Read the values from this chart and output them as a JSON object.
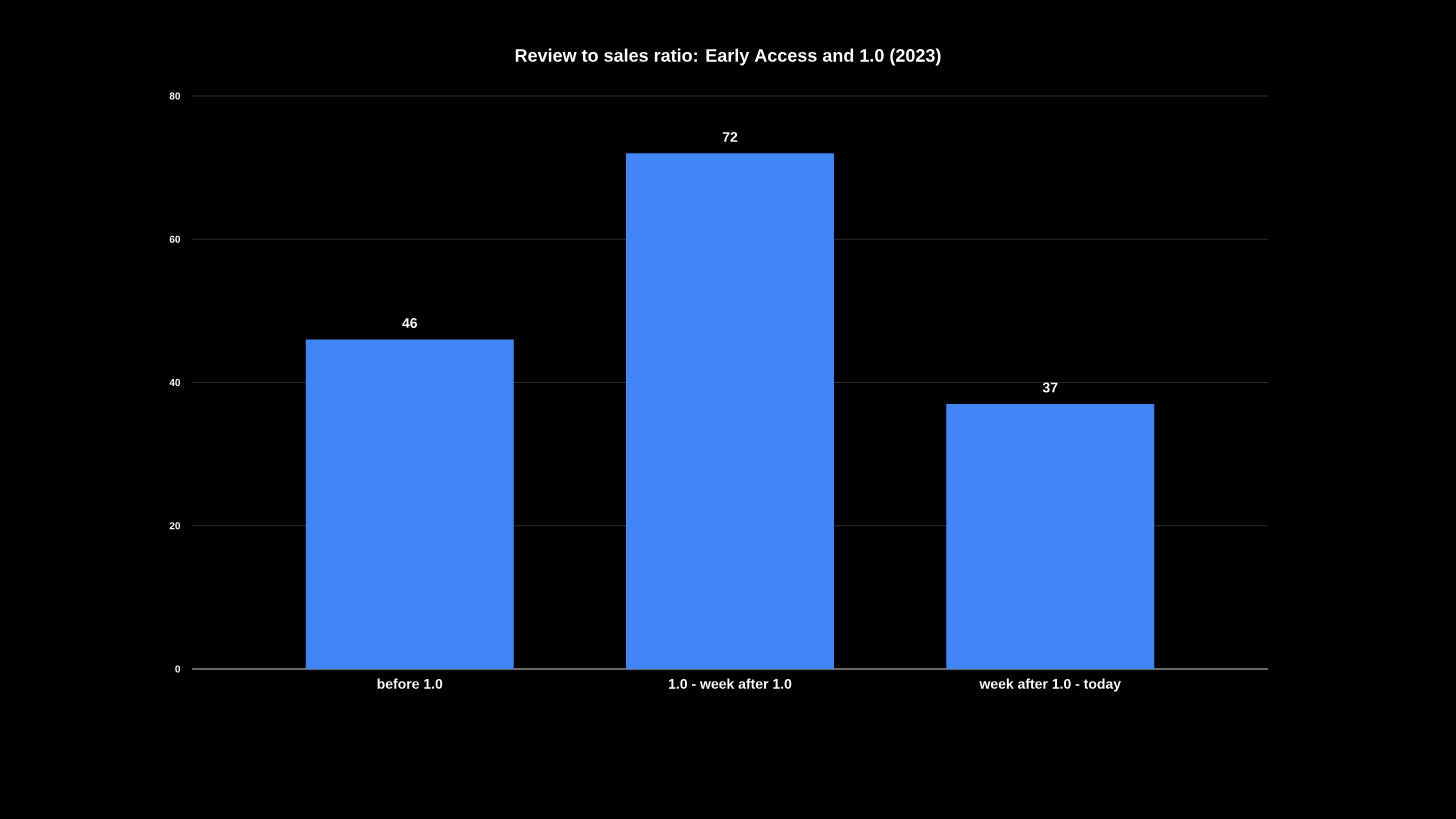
{
  "chart_data": {
    "type": "bar",
    "title": "Review to sales ratio: Early Access and 1.0 (2023)",
    "categories": [
      "before 1.0",
      "1.0 - week after 1.0",
      "week after 1.0 - today"
    ],
    "values": [
      46,
      72,
      37
    ],
    "color": "#4285f4",
    "ylim": [
      0,
      80
    ],
    "yticks": [
      0,
      20,
      40,
      60,
      80
    ],
    "grid": "y",
    "data_labels": true
  }
}
